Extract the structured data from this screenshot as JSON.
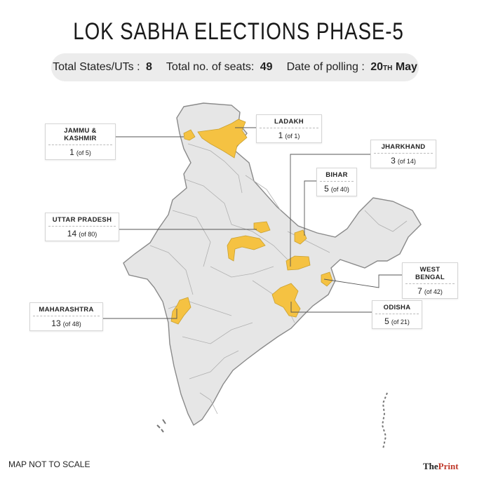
{
  "title": "LOK SABHA ELECTIONS PHASE-5",
  "stats": {
    "states_label": "Total States/UTs :",
    "states_value": "8",
    "seats_label": "Total no. of seats:",
    "seats_value": "49",
    "date_label": "Date of polling :",
    "date_day": "20",
    "date_suffix": "TH",
    "date_month": "May"
  },
  "colors": {
    "highlight": "#f5c242",
    "base": "#e6e6e6",
    "border": "#8a8a8a",
    "leader": "#555555"
  },
  "states": [
    {
      "name": "JAMMU & KASHMIR",
      "seats": "1",
      "total": "(of 5)"
    },
    {
      "name": "LADAKH",
      "seats": "1",
      "total": "(of 1)"
    },
    {
      "name": "JHARKHAND",
      "seats": "3",
      "total": "(of 14)"
    },
    {
      "name": "BIHAR",
      "seats": "5",
      "total": "(of 40)"
    },
    {
      "name": "UTTAR PRADESH",
      "seats": "14",
      "total": "(of 80)"
    },
    {
      "name": "WEST BENGAL",
      "seats": "7",
      "total": "(of 42)"
    },
    {
      "name": "MAHARASHTRA",
      "seats": "13",
      "total": "(of 48)"
    },
    {
      "name": "ODISHA",
      "seats": "5",
      "total": "(of 21)"
    }
  ],
  "footer": {
    "note": "MAP NOT TO SCALE",
    "brand_the": "The",
    "brand_print": "Print"
  }
}
